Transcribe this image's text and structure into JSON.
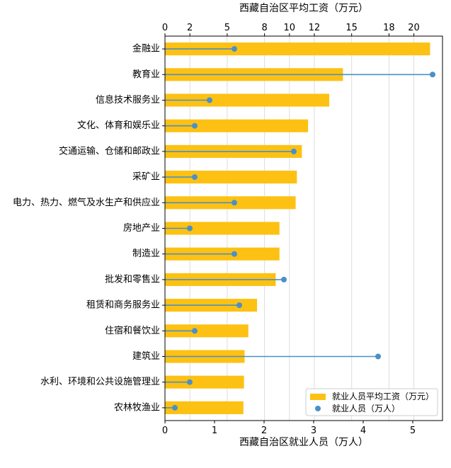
{
  "chart_data": {
    "type": "bar",
    "orientation": "horizontal",
    "title": "",
    "colors": {
      "bar": "#FDC113",
      "dot": "#4A90C8",
      "grid": "#dddddd"
    },
    "categories": [
      "金融业",
      "教育业",
      "信息技术服务业",
      "文化、体育和娱乐业",
      "交通运输、仓储和邮政业",
      "采矿业",
      "电力、热力、燃气及水生产和供应业",
      "房地产业",
      "制造业",
      "批发和零售业",
      "租赁和商务服务业",
      "住宿和餐饮业",
      "建筑业",
      "水利、环境和公共设施管理业",
      "农林牧渔业"
    ],
    "top_axis": {
      "label": "西藏自治区平均工资（万元）",
      "lim": [
        0,
        22.3
      ],
      "ticks": [
        0,
        2,
        5,
        8,
        10,
        12,
        15,
        18,
        20
      ],
      "tick_labels": [
        "0",
        "2",
        "5",
        "8",
        "10",
        "12",
        "15",
        "18",
        "20"
      ]
    },
    "bottom_axis": {
      "label": "西藏自治区就业人员（万人）",
      "lim": [
        0,
        5.6
      ],
      "ticks": [
        0,
        1,
        2,
        3,
        4,
        5
      ],
      "tick_labels": [
        "0",
        "1",
        "2",
        "3",
        "4",
        "5"
      ]
    },
    "series": [
      {
        "name": "就业人员平均工资（万元）",
        "kind": "bar",
        "axis": "top",
        "values": [
          21.3,
          14.3,
          13.2,
          11.5,
          11.0,
          10.6,
          10.5,
          9.2,
          9.2,
          8.9,
          7.4,
          6.7,
          6.4,
          6.35,
          6.3
        ]
      },
      {
        "name": "就业人员（万人）",
        "kind": "lollipop",
        "axis": "bottom",
        "values": [
          1.4,
          5.4,
          0.9,
          0.6,
          2.6,
          0.6,
          1.4,
          0.5,
          1.4,
          2.4,
          1.5,
          0.6,
          4.3,
          0.5,
          0.2
        ]
      }
    ],
    "grid": "vertical",
    "legend": {
      "position": "lower-right"
    }
  }
}
